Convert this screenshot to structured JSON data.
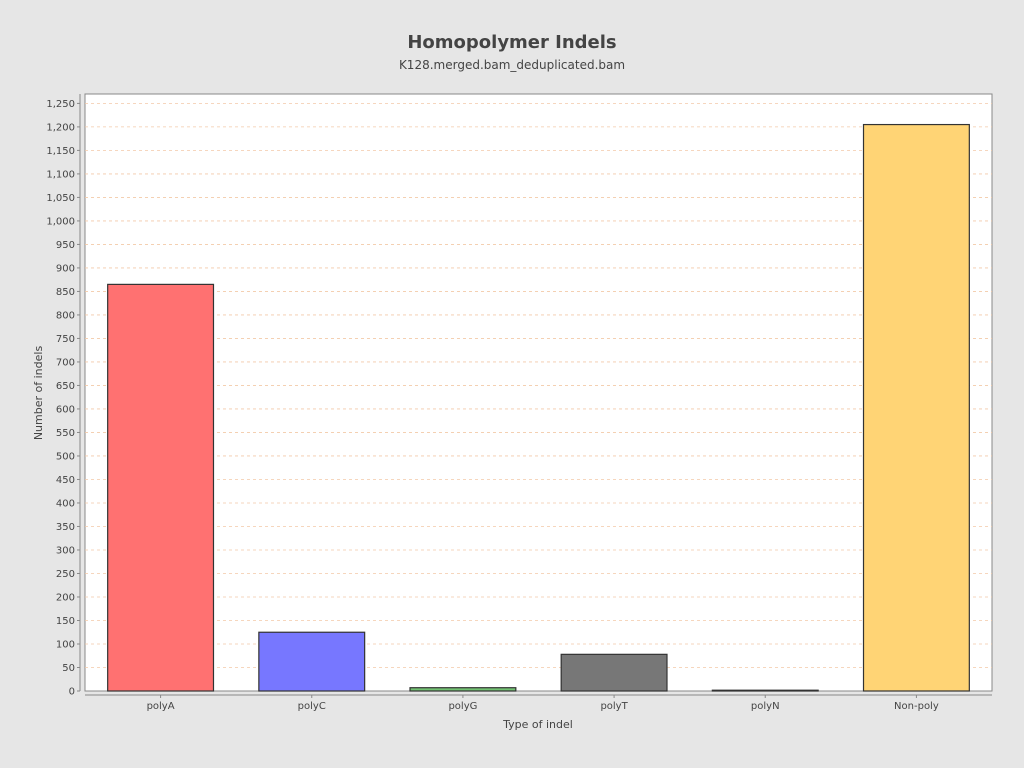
{
  "chart_data": {
    "type": "bar",
    "title": "Homopolymer Indels",
    "subtitle": "K128.merged.bam_deduplicated.bam",
    "xlabel": "Type of indel",
    "ylabel": "Number of indels",
    "categories": [
      "polyA",
      "polyC",
      "polyG",
      "polyT",
      "polyN",
      "Non-poly"
    ],
    "values": [
      865,
      125,
      7,
      78,
      1,
      1205
    ],
    "colors": [
      "#ff7171",
      "#7777ff",
      "#73c373",
      "#777777",
      "#dddddd",
      "#ffd475"
    ],
    "ylim": [
      0,
      1270
    ],
    "yticks": [
      0,
      50,
      100,
      150,
      200,
      250,
      300,
      350,
      400,
      450,
      500,
      550,
      600,
      650,
      700,
      750,
      800,
      850,
      900,
      950,
      1000,
      1050,
      1100,
      1150,
      1200,
      1250
    ],
    "grid": true,
    "legend": "none",
    "background": "#ffffff",
    "page_background": "#e6e6e6",
    "grid_color": "#f3c9a8"
  }
}
